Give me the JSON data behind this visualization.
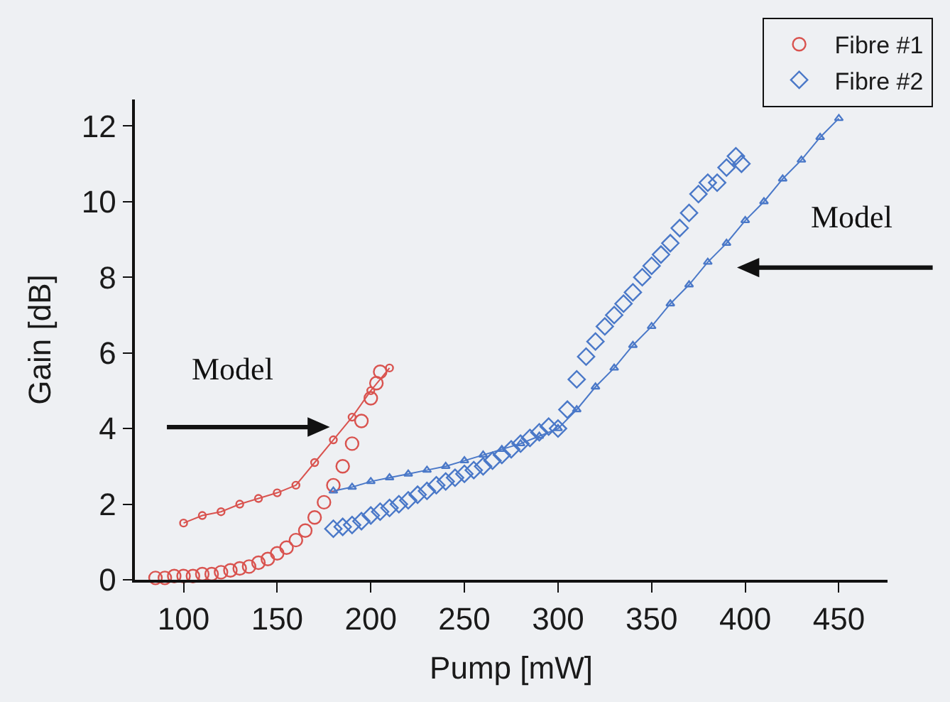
{
  "chart_data": {
    "type": "scatter",
    "xlabel": "Pump [mW]",
    "ylabel": "Gain [dB]",
    "xlim": [
      74,
      476
    ],
    "xticks": [
      100,
      150,
      200,
      250,
      300,
      350,
      400,
      450
    ],
    "ylim": [
      0,
      12.7
    ],
    "yticks": [
      0,
      2,
      4,
      6,
      8,
      10,
      12
    ],
    "grid": false,
    "legend": "top right",
    "series": [
      {
        "name": "Fibre #1",
        "marker": "circle",
        "color": "#d9534f",
        "x": [
          85,
          90,
          95,
          100,
          105,
          110,
          115,
          120,
          125,
          130,
          135,
          140,
          145,
          150,
          155,
          160,
          165,
          170,
          175,
          180,
          185,
          190,
          195,
          200,
          203,
          205
        ],
        "values": [
          0.05,
          0.05,
          0.1,
          0.1,
          0.1,
          0.15,
          0.15,
          0.2,
          0.25,
          0.3,
          0.35,
          0.45,
          0.55,
          0.7,
          0.85,
          1.05,
          1.3,
          1.65,
          2.05,
          2.5,
          3.0,
          3.6,
          4.2,
          4.8,
          5.2,
          5.5
        ]
      },
      {
        "name": "Fibre #2",
        "marker": "diamond",
        "color": "#4a78c8",
        "x": [
          180,
          185,
          190,
          195,
          200,
          205,
          210,
          215,
          220,
          225,
          230,
          235,
          240,
          245,
          250,
          255,
          260,
          265,
          270,
          275,
          280,
          285,
          290,
          295,
          300,
          305,
          310,
          315,
          320,
          325,
          330,
          335,
          340,
          345,
          350,
          355,
          360,
          365,
          370,
          375,
          380,
          385,
          390,
          395,
          398
        ],
        "values": [
          1.35,
          1.4,
          1.45,
          1.55,
          1.7,
          1.8,
          1.9,
          2.0,
          2.1,
          2.25,
          2.35,
          2.5,
          2.6,
          2.7,
          2.8,
          2.9,
          3.0,
          3.15,
          3.3,
          3.45,
          3.6,
          3.75,
          3.9,
          4.05,
          4.0,
          4.5,
          5.3,
          5.9,
          6.3,
          6.7,
          7.0,
          7.3,
          7.6,
          8.0,
          8.3,
          8.6,
          8.9,
          9.3,
          9.7,
          10.2,
          10.5,
          10.5,
          10.9,
          11.2,
          11.0
        ]
      },
      {
        "type": "line",
        "marker": "circle",
        "color": "#d9534f",
        "x": [
          100,
          110,
          120,
          130,
          140,
          150,
          160,
          170,
          180,
          190,
          200,
          210
        ],
        "values": [
          1.5,
          1.7,
          1.8,
          2.0,
          2.15,
          2.3,
          2.5,
          3.1,
          3.7,
          4.3,
          5.0,
          5.6
        ]
      },
      {
        "type": "line",
        "marker": "triangle",
        "color": "#4a78c8",
        "x": [
          180,
          190,
          200,
          210,
          220,
          230,
          240,
          250,
          260,
          270,
          280,
          290,
          300,
          310,
          320,
          330,
          340,
          350,
          360,
          370,
          380,
          390,
          400,
          410,
          420,
          430,
          440,
          450
        ],
        "values": [
          2.35,
          2.45,
          2.6,
          2.7,
          2.8,
          2.9,
          3.0,
          3.15,
          3.3,
          3.45,
          3.6,
          3.8,
          4.0,
          4.5,
          5.1,
          5.6,
          6.2,
          6.7,
          7.3,
          7.8,
          8.4,
          8.9,
          9.5,
          10.0,
          10.6,
          11.1,
          11.7,
          12.2
        ]
      }
    ],
    "annotations": [
      "Model",
      "Model"
    ]
  }
}
